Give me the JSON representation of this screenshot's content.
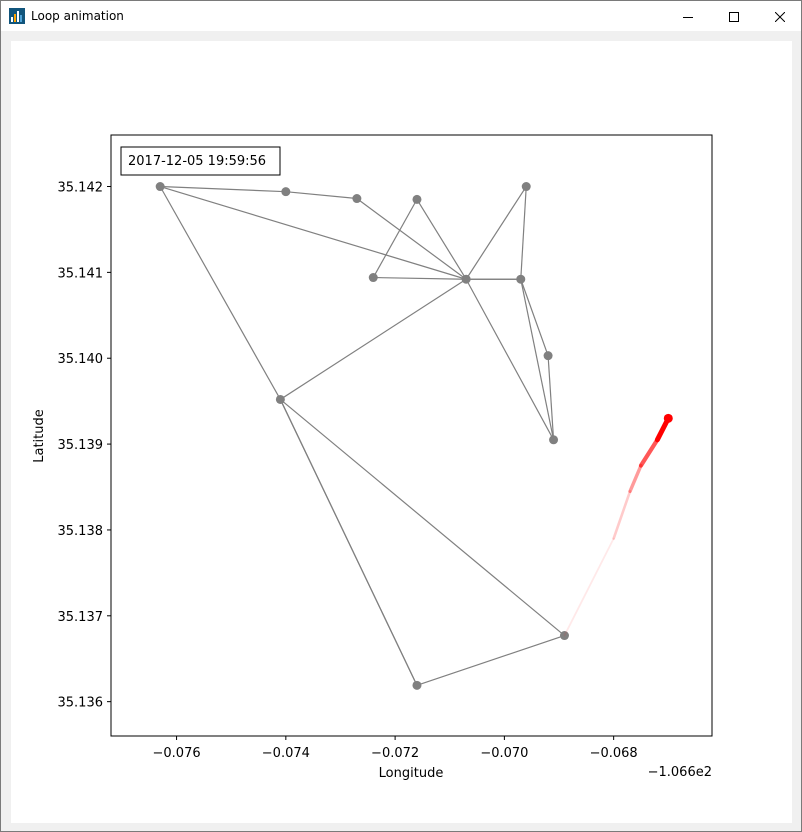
{
  "window": {
    "title": "Loop animation",
    "icon": "matplotlib-figure-icon",
    "controls": [
      "minimize-icon",
      "maximize-icon",
      "close-icon"
    ]
  },
  "timestamp_label": "2017-12-05 19:59:56",
  "chart_data": {
    "type": "line",
    "xlabel": "Longitude",
    "ylabel": "Latitude",
    "x_offset_label": "−1.066e2",
    "xlim": [
      -0.0772,
      -0.0662
    ],
    "ylim": [
      35.1356,
      35.1426
    ],
    "x_ticks": [
      -0.076,
      -0.074,
      -0.072,
      -0.07,
      -0.068
    ],
    "x_tick_labels": [
      "−0.076",
      "−0.074",
      "−0.072",
      "−0.070",
      "−0.068"
    ],
    "y_ticks": [
      35.136,
      35.137,
      35.138,
      35.139,
      35.14,
      35.141,
      35.142
    ],
    "y_tick_labels": [
      "35.136",
      "35.137",
      "35.138",
      "35.139",
      "35.140",
      "35.141",
      "35.142"
    ],
    "grid": false,
    "colors": {
      "path": "#808080",
      "trail": "#ff0000",
      "background": "#ffffff"
    },
    "series": [
      {
        "role": "path",
        "points": [
          [
            -0.0763,
            35.142
          ],
          [
            -0.074,
            35.14194
          ],
          [
            -0.0727,
            35.14186
          ],
          [
            -0.0707,
            35.14092
          ],
          [
            -0.0697,
            35.14092
          ],
          [
            -0.0696,
            35.142
          ],
          [
            -0.0707,
            35.14092
          ],
          [
            -0.0716,
            35.14185
          ],
          [
            -0.0724,
            35.14094
          ],
          [
            -0.0707,
            35.14092
          ],
          [
            -0.0741,
            35.13952
          ],
          [
            -0.0716,
            35.13619
          ],
          [
            -0.0689,
            35.13677
          ],
          [
            -0.0741,
            35.13952
          ],
          [
            -0.0763,
            35.142
          ],
          [
            -0.0707,
            35.14092
          ],
          [
            -0.0697,
            35.14092
          ],
          [
            -0.0692,
            35.14003
          ],
          [
            -0.0691,
            35.13905
          ],
          [
            -0.0697,
            35.14092
          ]
        ],
        "extra_segments": [
          [
            [
              -0.0707,
              35.14092
            ],
            [
              -0.0691,
              35.13905
            ]
          ],
          [
            [
              -0.0716,
              35.13619
            ],
            [
              -0.0741,
              35.13952
            ]
          ]
        ]
      },
      {
        "role": "trail",
        "points": [
          [
            -0.0689,
            35.13677
          ],
          [
            -0.068,
            35.1379
          ],
          [
            -0.0677,
            35.13845
          ],
          [
            -0.0675,
            35.13875
          ],
          [
            -0.0672,
            35.13905
          ],
          [
            -0.067,
            35.1393
          ]
        ]
      }
    ]
  }
}
